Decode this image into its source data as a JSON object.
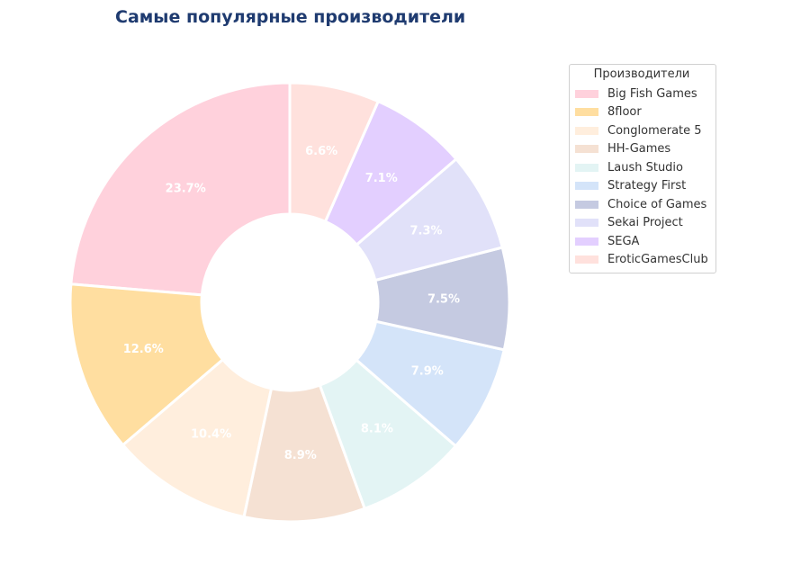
{
  "chart_data": {
    "type": "pie",
    "title": "Самые популярные производители",
    "legend_title": "Производители",
    "legend_position": "right",
    "donut": true,
    "categories": [
      "Big Fish Games",
      "8floor",
      "Conglomerate 5",
      "HH-Games",
      "Laush Studio",
      "Strategy First",
      "Choice of Games",
      "Sekai Project",
      "SEGA",
      "EroticGamesClub"
    ],
    "values": [
      23.7,
      12.6,
      10.4,
      8.9,
      8.1,
      7.9,
      7.5,
      7.3,
      7.1,
      6.6
    ],
    "value_labels": [
      "23.7%",
      "12.6%",
      "10.4%",
      "8.9%",
      "8.1%",
      "7.9%",
      "7.5%",
      "7.3%",
      "7.1%",
      "6.6%"
    ],
    "colors": [
      "#ffd1dc",
      "#ffdea0",
      "#ffeedd",
      "#f5e1d3",
      "#e3f4f4",
      "#d4e4f9",
      "#c5cae1",
      "#e1e1f9",
      "#e3cfff",
      "#ffe1dd"
    ]
  }
}
